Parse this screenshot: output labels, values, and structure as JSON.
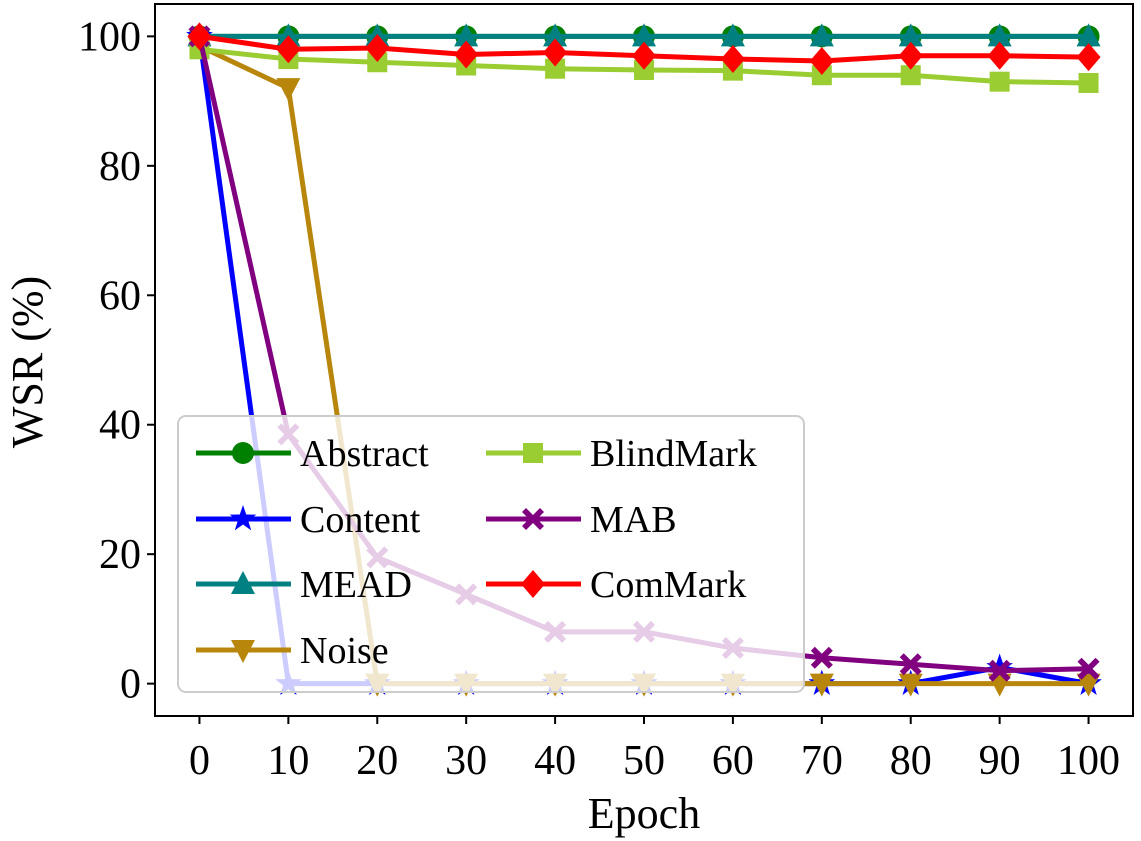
{
  "chart_data": {
    "type": "line",
    "xlabel": "Epoch",
    "ylabel": "WSR (%)",
    "xlim": [
      -5,
      105
    ],
    "ylim": [
      -5,
      105
    ],
    "xticks": [
      0,
      10,
      20,
      30,
      40,
      50,
      60,
      70,
      80,
      90,
      100
    ],
    "yticks": [
      0,
      20,
      40,
      60,
      80,
      100
    ],
    "grid": false,
    "legend_position": "lower-left",
    "legend_columns": 2,
    "x": [
      0,
      10,
      20,
      30,
      40,
      50,
      60,
      70,
      80,
      90,
      100
    ],
    "series": [
      {
        "name": "Abstract",
        "color": "#008000",
        "marker": "circle",
        "values": [
          100,
          100,
          100,
          100,
          100,
          100,
          100,
          100,
          100,
          100,
          100
        ]
      },
      {
        "name": "Content",
        "color": "#0000ff",
        "marker": "star",
        "values": [
          100,
          0,
          0,
          0,
          0,
          0,
          0,
          0,
          0,
          2.5,
          0
        ]
      },
      {
        "name": "MEAD",
        "color": "#008080",
        "marker": "triangle-up",
        "values": [
          100,
          100,
          100,
          100,
          100,
          100,
          100,
          100,
          100,
          100,
          100
        ]
      },
      {
        "name": "Noise",
        "color": "#b8860b",
        "marker": "triangle-down",
        "values": [
          98.5,
          92,
          0,
          0,
          0,
          0,
          0,
          0,
          0,
          0,
          0
        ]
      },
      {
        "name": "BlindMark",
        "color": "#9acd32",
        "marker": "square",
        "values": [
          98,
          96.5,
          96,
          95.5,
          95,
          94.8,
          94.7,
          94,
          94,
          93,
          92.8
        ]
      },
      {
        "name": "MAB",
        "color": "#800080",
        "marker": "x",
        "values": [
          100,
          38.5,
          19.5,
          13.8,
          8,
          8,
          5.5,
          4,
          3,
          2,
          2.3
        ]
      },
      {
        "name": "ComMark",
        "color": "#ff0000",
        "marker": "diamond",
        "values": [
          100,
          98,
          98.2,
          97.2,
          97.5,
          97,
          96.5,
          96.2,
          97,
          97,
          96.8
        ]
      }
    ]
  }
}
